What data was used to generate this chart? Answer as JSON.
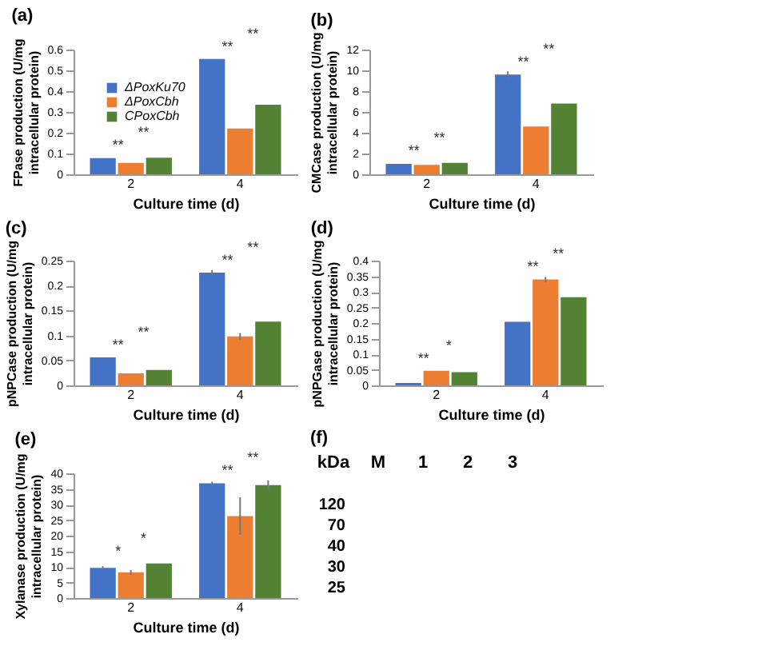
{
  "chart_data": [
    {
      "type": "bar",
      "title": "(a)",
      "categories": [
        "2",
        "4"
      ],
      "xlabel": "Culture time (d)",
      "ylabel": "FPase production (U/mg intracellular protein)",
      "ylim": [
        0,
        0.6
      ],
      "yticks": [
        0,
        0.1,
        0.2,
        0.3,
        0.4,
        0.5,
        0.6
      ],
      "legend": "top left",
      "series": [
        {
          "name": "ΔPoxKu70",
          "color": "#4472c4",
          "values": [
            0.078,
            0.555
          ]
        },
        {
          "name": "ΔPoxCbh",
          "color": "#ed7d31",
          "values": [
            0.055,
            0.22
          ]
        },
        {
          "name": "CPoxCbh",
          "color": "#548235",
          "values": [
            0.08,
            0.335
          ]
        }
      ],
      "annotations": [
        "**",
        "**",
        "**",
        "**"
      ]
    },
    {
      "type": "bar",
      "title": "(b)",
      "categories": [
        "2",
        "4"
      ],
      "xlabel": "Culture time (d)",
      "ylabel": "CMCase production (U/mg intracellular protein)",
      "ylim": [
        0,
        12
      ],
      "yticks": [
        0,
        2,
        4,
        6,
        8,
        10,
        12
      ],
      "series": [
        {
          "color": "#4472c4",
          "values": [
            1.0,
            9.6
          ],
          "errors": [
            null,
            0.3
          ]
        },
        {
          "color": "#ed7d31",
          "values": [
            0.9,
            4.6
          ]
        },
        {
          "color": "#548235",
          "values": [
            1.1,
            6.8
          ]
        }
      ],
      "annotations": [
        "**",
        "**",
        "**",
        "**"
      ]
    },
    {
      "type": "bar",
      "title": "(c)",
      "categories": [
        "2",
        "4"
      ],
      "xlabel": "Culture time (d)",
      "ylabel": "pNPCase production (U/mg intracellular protein)",
      "ylim": [
        0,
        0.25
      ],
      "yticks": [
        0,
        0.05,
        0.1,
        0.15,
        0.2,
        0.25
      ],
      "series": [
        {
          "color": "#4472c4",
          "values": [
            0.056,
            0.226
          ],
          "errors": [
            null,
            0.005
          ]
        },
        {
          "color": "#ed7d31",
          "values": [
            0.024,
            0.098
          ],
          "errors": [
            null,
            0.007
          ]
        },
        {
          "color": "#548235",
          "values": [
            0.031,
            0.128
          ]
        }
      ],
      "annotations": [
        "**",
        "**",
        "**",
        "**"
      ]
    },
    {
      "type": "bar",
      "title": "(d)",
      "categories": [
        "2",
        "4"
      ],
      "xlabel": "Culture time (d)",
      "ylabel": "pNPGase production (U/mg intracellular protein)",
      "ylim": [
        0,
        0.4
      ],
      "yticks": [
        0,
        0.05,
        0.1,
        0.15,
        0.2,
        0.25,
        0.3,
        0.35,
        0.4
      ],
      "series": [
        {
          "color": "#4472c4",
          "values": [
            0.008,
            0.204
          ]
        },
        {
          "color": "#ed7d31",
          "values": [
            0.047,
            0.34
          ],
          "errors": [
            null,
            0.008
          ]
        },
        {
          "color": "#548235",
          "values": [
            0.042,
            0.283
          ]
        }
      ],
      "annotations": [
        "**",
        "*",
        "**",
        "**"
      ]
    },
    {
      "type": "bar",
      "title": "(e)",
      "categories": [
        "2",
        "4"
      ],
      "xlabel": "Culture time (d)",
      "ylabel": "Xylanase production (U/mg intracellular protein)",
      "ylim": [
        0,
        40
      ],
      "yticks": [
        0,
        5,
        10,
        15,
        20,
        25,
        30,
        35,
        40
      ],
      "series": [
        {
          "color": "#4472c4",
          "values": [
            9.7,
            36.8
          ],
          "errors": [
            0.5,
            0.5
          ]
        },
        {
          "color": "#ed7d31",
          "values": [
            8.2,
            26.3
          ],
          "errors": [
            0.8,
            6
          ]
        },
        {
          "color": "#548235",
          "values": [
            11.1,
            36.2
          ],
          "errors": [
            null,
            1.5
          ]
        }
      ],
      "annotations": [
        "*",
        "*",
        "**",
        "**"
      ]
    },
    {
      "type": "other",
      "title": "(f)",
      "categories": [
        "M",
        "1",
        "2",
        "3"
      ],
      "ylabel": "kDa",
      "annotations": [
        "120",
        "70",
        "40",
        "30",
        "25"
      ]
    }
  ]
}
